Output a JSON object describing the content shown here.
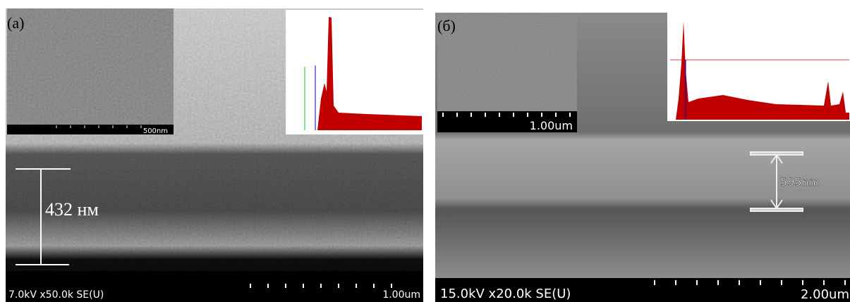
{
  "panels": [
    {
      "label": "(a)",
      "inset_scale": "500nm",
      "thickness": "432 нм",
      "info": "7.0kV x50.0k SE(U)",
      "scale": "1.00um"
    },
    {
      "label": "(б)",
      "inset_scale": "1.00um",
      "thickness": "595nm",
      "info": "15.0kV x20.0k SE(U)",
      "scale": "2.00um"
    }
  ]
}
